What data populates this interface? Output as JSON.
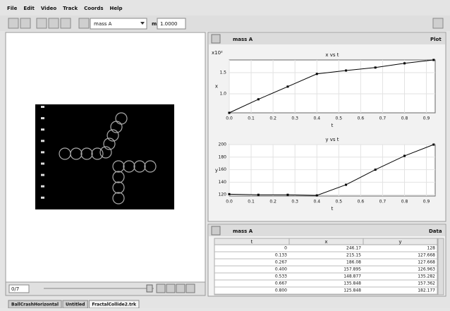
{
  "menu": [
    "File",
    "Edit",
    "Video",
    "Track",
    "Coords",
    "Help"
  ],
  "toolbar": {
    "track_select": "mass A",
    "mass_label": "m",
    "mass_value": "1.0000"
  },
  "video": {
    "frame": "0/7"
  },
  "tabs": [
    "BallCrashHorizontal",
    "Untitled",
    "FractalCollide2.trk"
  ],
  "plot_panel": {
    "track": "mass A",
    "button": "Plot"
  },
  "chart_data": [
    {
      "type": "line",
      "title": "x vs t",
      "x_label": "t",
      "y_label": "x",
      "y_exponent": "x10²",
      "color": "#000000",
      "x": [
        0,
        0.133,
        0.267,
        0.4,
        0.533,
        0.667,
        0.8,
        0.933
      ],
      "values": [
        0.55,
        0.87,
        1.17,
        1.47,
        1.55,
        1.62,
        1.72,
        1.8
      ],
      "xlim": [
        0,
        0.94
      ],
      "ylim": [
        0.55,
        1.8
      ],
      "xticks": [
        {
          "value": 0,
          "label": "0.0"
        },
        0.1,
        0.2,
        0.3,
        0.4,
        0.5,
        0.6,
        0.7,
        0.8,
        0.9
      ],
      "yticks": [
        {
          "value": 1,
          "label": "1.0"
        },
        1.5
      ]
    },
    {
      "type": "line",
      "title": "y vs t",
      "x_label": "t",
      "y_label": "y",
      "color": "#000000",
      "x": [
        0,
        0.133,
        0.267,
        0.4,
        0.533,
        0.667,
        0.8,
        0.933
      ],
      "values": [
        121,
        120,
        120,
        119,
        136,
        160,
        182,
        200
      ],
      "xlim": [
        0,
        0.94
      ],
      "ylim": [
        118,
        200
      ],
      "xticks": [
        {
          "value": 0,
          "label": "0.0"
        },
        0.1,
        0.2,
        0.3,
        0.4,
        0.5,
        0.6,
        0.7,
        0.8,
        0.9
      ],
      "yticks": [
        120,
        140,
        160,
        180,
        200
      ]
    }
  ],
  "table_panel": {
    "track": "mass A",
    "button": "Data",
    "columns": [
      "t",
      "x",
      "y"
    ],
    "rows": [
      [
        "0",
        "246.17",
        "128"
      ],
      [
        "0.133",
        "215.15",
        "127.668"
      ],
      [
        "0.267",
        "186.08",
        "127.668"
      ],
      [
        "0.400",
        "157.895",
        "126.963"
      ],
      [
        "0.533",
        "148.877",
        "135.282"
      ],
      [
        "0.667",
        "135.848",
        "157.362"
      ],
      [
        "0.800",
        "125.848",
        "182.177"
      ]
    ]
  }
}
